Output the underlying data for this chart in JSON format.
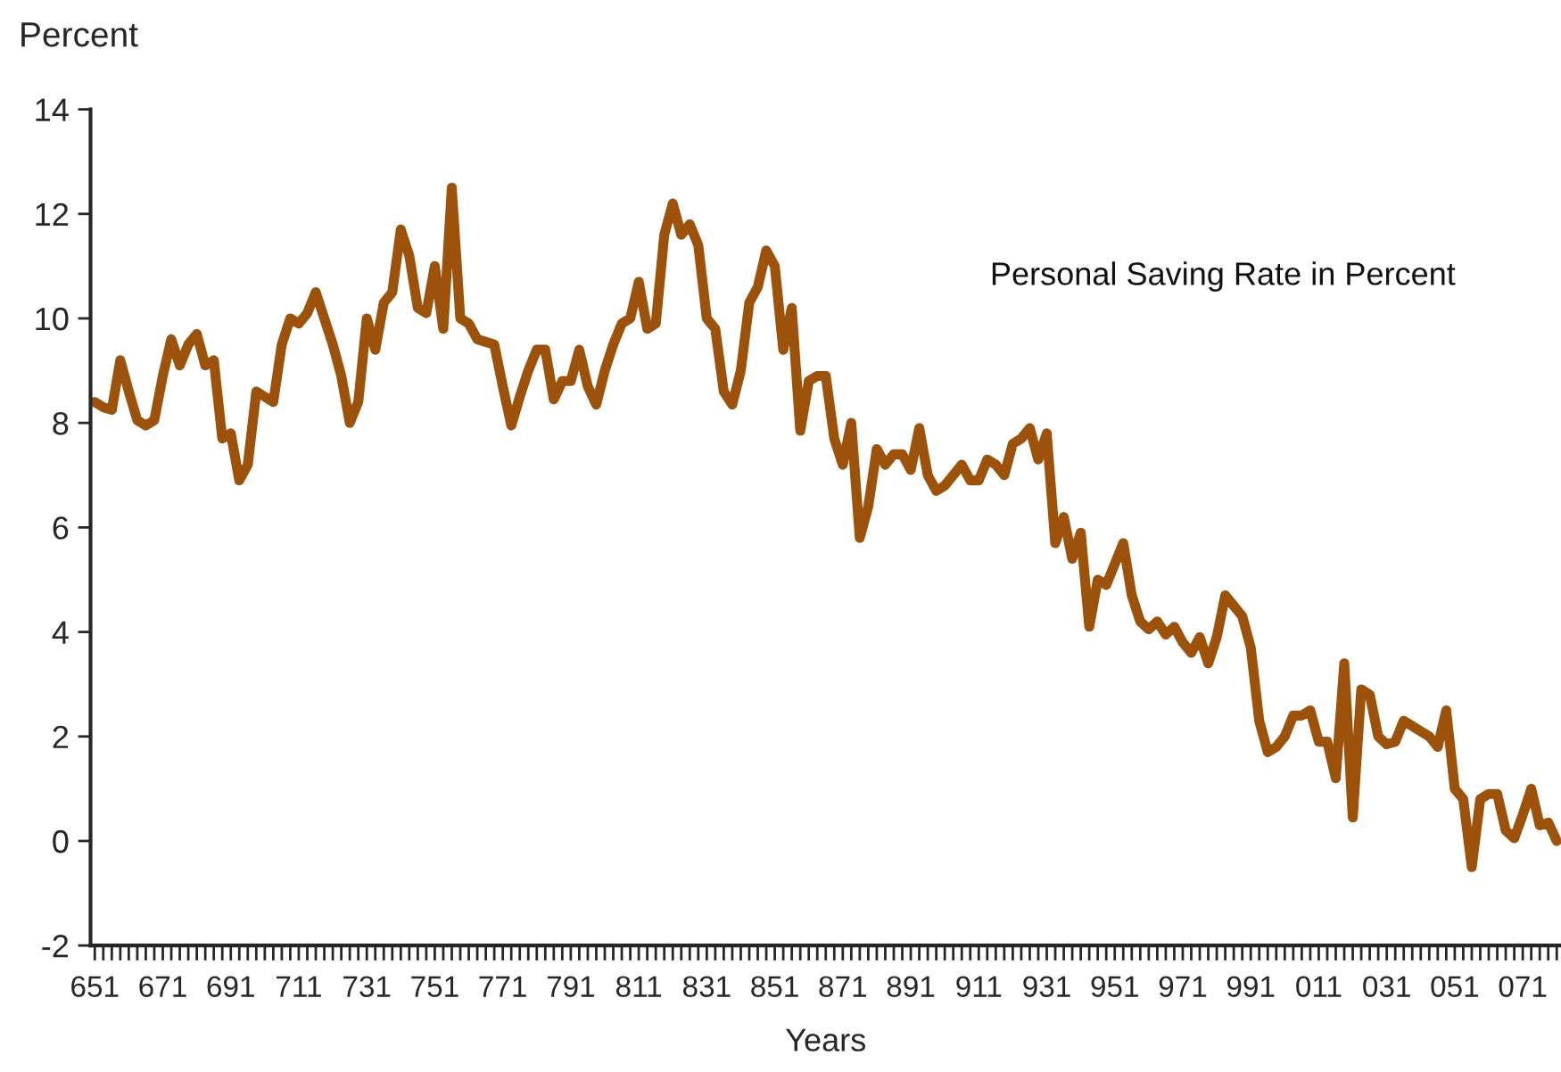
{
  "chart_data": {
    "type": "line",
    "ylabel": "Percent",
    "xlabel": "Years",
    "categories": [
      "651",
      null,
      null,
      null,
      null,
      null,
      null,
      null,
      "671",
      null,
      null,
      null,
      null,
      null,
      null,
      null,
      "691",
      null,
      null,
      null,
      null,
      null,
      null,
      null,
      "711",
      null,
      null,
      null,
      null,
      null,
      null,
      null,
      "731",
      null,
      null,
      null,
      null,
      null,
      null,
      null,
      "751",
      null,
      null,
      null,
      null,
      null,
      null,
      null,
      "771",
      null,
      null,
      null,
      null,
      null,
      null,
      null,
      "791",
      null,
      null,
      null,
      null,
      null,
      null,
      null,
      "811",
      null,
      null,
      null,
      null,
      null,
      null,
      null,
      "831",
      null,
      null,
      null,
      null,
      null,
      null,
      null,
      "851",
      null,
      null,
      null,
      null,
      null,
      null,
      null,
      "871",
      null,
      null,
      null,
      null,
      null,
      null,
      null,
      "891",
      null,
      null,
      null,
      null,
      null,
      null,
      null,
      "911",
      null,
      null,
      null,
      null,
      null,
      null,
      null,
      "931",
      null,
      null,
      null,
      null,
      null,
      null,
      null,
      "951",
      null,
      null,
      null,
      null,
      null,
      null,
      null,
      "971",
      null,
      null,
      null,
      null,
      null,
      null,
      null,
      "991",
      null,
      null,
      null,
      null,
      null,
      null,
      null,
      "011",
      null,
      null,
      null,
      null,
      null,
      null,
      null,
      "031",
      null,
      null,
      null,
      null,
      null,
      null,
      null,
      "051",
      null,
      null,
      null,
      null,
      null,
      null,
      null,
      "071",
      null,
      null,
      null,
      null
    ],
    "series": [
      {
        "name": "Personal Saving Rate in Percent",
        "color": "#9c520b",
        "values": [
          8.4,
          8.3,
          8.25,
          9.2,
          8.6,
          8.05,
          7.95,
          8.05,
          8.9,
          9.6,
          9.1,
          9.5,
          9.7,
          9.1,
          9.2,
          7.7,
          7.8,
          6.9,
          7.2,
          8.6,
          8.5,
          8.4,
          9.5,
          10.0,
          9.9,
          10.1,
          10.5,
          10.0,
          9.5,
          8.9,
          8.0,
          8.4,
          10.0,
          9.4,
          10.3,
          10.5,
          11.7,
          11.2,
          10.2,
          10.1,
          11.0,
          9.8,
          12.5,
          10.0,
          9.9,
          9.6,
          9.55,
          9.5,
          8.7,
          7.95,
          8.5,
          9.0,
          9.4,
          9.4,
          8.45,
          8.8,
          8.8,
          9.4,
          8.7,
          8.35,
          9.0,
          9.5,
          9.9,
          10.0,
          10.7,
          9.8,
          9.9,
          11.6,
          12.2,
          11.6,
          11.8,
          11.4,
          10.0,
          9.8,
          8.6,
          8.35,
          9.0,
          10.3,
          10.6,
          11.3,
          11.0,
          9.4,
          10.2,
          7.85,
          8.8,
          8.9,
          8.9,
          7.7,
          7.2,
          8.0,
          5.8,
          6.4,
          7.5,
          7.2,
          7.4,
          7.4,
          7.1,
          7.9,
          7.0,
          6.7,
          6.8,
          7.0,
          7.2,
          6.9,
          6.9,
          7.3,
          7.2,
          7.0,
          7.6,
          7.7,
          7.9,
          7.3,
          7.8,
          5.7,
          6.2,
          5.4,
          5.9,
          4.1,
          5.0,
          4.9,
          5.3,
          5.7,
          4.7,
          4.2,
          4.05,
          4.2,
          3.95,
          4.1,
          3.8,
          3.6,
          3.9,
          3.4,
          3.9,
          4.7,
          4.5,
          4.3,
          3.7,
          2.3,
          1.7,
          1.8,
          2.0,
          2.4,
          2.4,
          2.5,
          1.9,
          1.9,
          1.2,
          3.4,
          0.45,
          2.9,
          2.8,
          2.0,
          1.85,
          1.9,
          2.3,
          2.2,
          2.1,
          2.0,
          1.8,
          2.5,
          1.0,
          0.8,
          -0.5,
          0.8,
          0.9,
          0.9,
          0.2,
          0.05,
          0.5,
          1.0,
          0.3,
          0.35,
          0.0
        ]
      }
    ],
    "ylim": [
      -2,
      14
    ],
    "yticks": [
      -2,
      0,
      2,
      4,
      6,
      8,
      10,
      12,
      14
    ],
    "grid": false,
    "legend": false,
    "marker": "none",
    "line_style": "solid"
  }
}
